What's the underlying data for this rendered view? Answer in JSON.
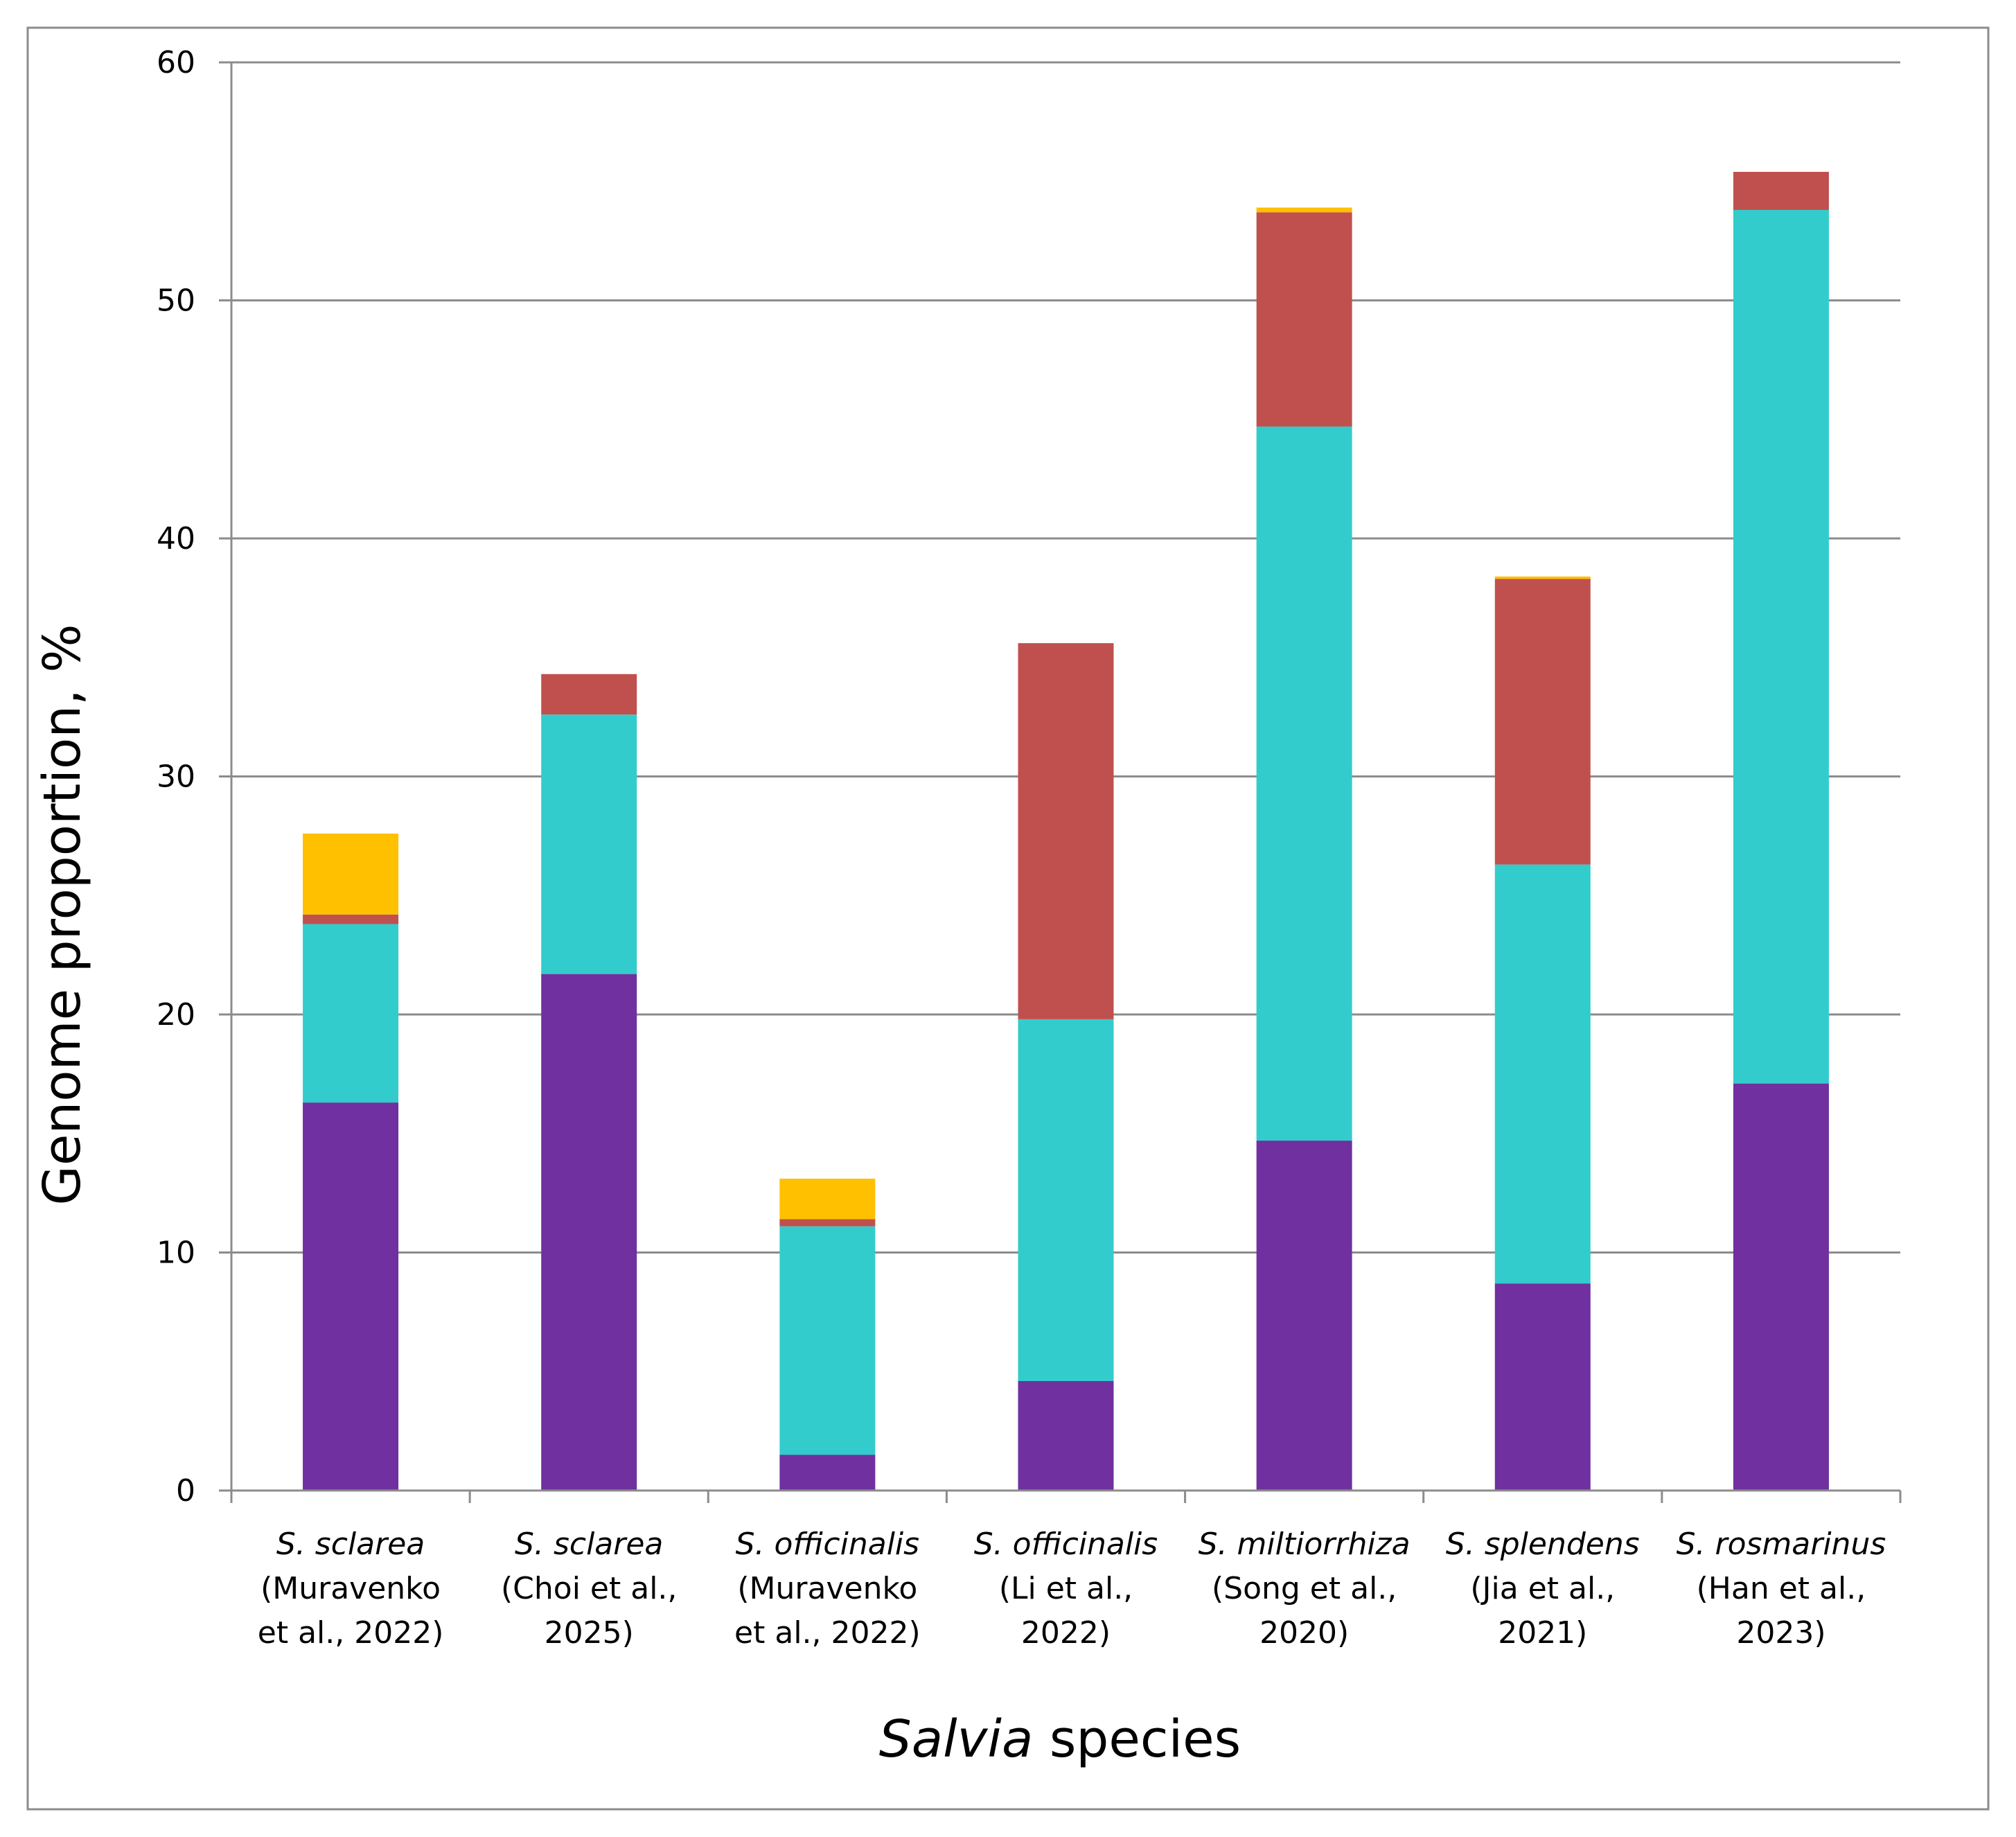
{
  "chart_data": {
    "type": "bar",
    "stacked": true,
    "title": "",
    "ylabel": "Genome proportion, %",
    "xlabel_italic": "Salvia",
    "xlabel_rest": " species",
    "ylim": [
      0,
      60
    ],
    "ytick_values": [
      0,
      10,
      20,
      30,
      40,
      50,
      60
    ],
    "ytick_labels": [
      "0",
      "10",
      "20",
      "30",
      "40",
      "50",
      "60"
    ],
    "grid": true,
    "legend": "none",
    "categories": [
      {
        "species": "S. sclarea",
        "ref_lines": [
          "(Muravenko",
          "et al., 2022)"
        ]
      },
      {
        "species": "S. sclarea",
        "ref_lines": [
          "(Choi et al.,",
          "2025)"
        ]
      },
      {
        "species": "S. officinalis",
        "ref_lines": [
          "(Muravenko",
          "et al., 2022)"
        ]
      },
      {
        "species": "S. officinalis",
        "ref_lines": [
          "(Li et al.,",
          "2022)"
        ]
      },
      {
        "species": "S. miltiorrhiza",
        "ref_lines": [
          "(Song et al.,",
          "2020)"
        ]
      },
      {
        "species": "S. splendens",
        "ref_lines": [
          "(Jia et al.,",
          "2021)"
        ]
      },
      {
        "species": "S. rosmarinus",
        "ref_lines": [
          "(Han et al.,",
          "2023)"
        ]
      }
    ],
    "series": [
      {
        "color": "#7030A0",
        "values": [
          16.3,
          21.7,
          1.5,
          4.6,
          14.7,
          8.7,
          17.1
        ]
      },
      {
        "color": "#33CCCC",
        "values": [
          7.5,
          10.9,
          9.6,
          15.2,
          30.0,
          17.6,
          36.7
        ]
      },
      {
        "color": "#C0504D",
        "values": [
          0.4,
          1.7,
          0.3,
          15.8,
          9.0,
          12.0,
          1.6
        ]
      },
      {
        "color": "#FFC000",
        "values": [
          3.4,
          0.0,
          1.7,
          0.0,
          0.2,
          0.1,
          0.0
        ]
      }
    ]
  }
}
